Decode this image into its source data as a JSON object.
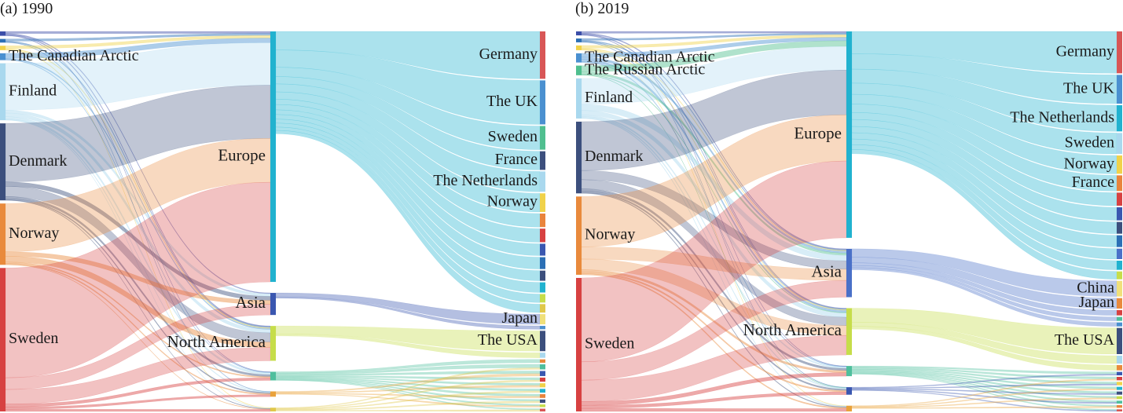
{
  "panels": [
    {
      "id": "1990",
      "title": "(a) 1990",
      "sources": [
        {
          "id": "s1",
          "label": "",
          "color": "#3b4ea8"
        },
        {
          "id": "s2",
          "label": "",
          "color": "#2b6fb5"
        },
        {
          "id": "s3",
          "label": "",
          "color": "#f0d24a"
        },
        {
          "id": "s4",
          "label": "The Canadian Arctic",
          "color": "#4a90d0"
        },
        {
          "id": "s5",
          "label": "Finland",
          "color": "#a9d8ee"
        },
        {
          "id": "s6",
          "label": "Denmark",
          "color": "#3c4f7d"
        },
        {
          "id": "s7",
          "label": "Norway",
          "color": "#e98a3c"
        },
        {
          "id": "s8",
          "label": "Sweden",
          "color": "#d74141"
        }
      ],
      "regions": [
        {
          "id": "europe",
          "label": "Europe",
          "color": "#21b2cf"
        },
        {
          "id": "asia",
          "label": "Asia",
          "color": "#3a57b0"
        },
        {
          "id": "namerica",
          "label": "North America",
          "color": "#c6dd4a"
        },
        {
          "id": "r4",
          "label": "",
          "color": "#4fbf9d"
        },
        {
          "id": "r5",
          "label": "",
          "color": "#e9a23b"
        },
        {
          "id": "r6",
          "label": "",
          "color": "#e0c84a"
        }
      ],
      "destinations": [
        {
          "label": "Germany",
          "color": "#d85656"
        },
        {
          "label": "The UK",
          "color": "#4a90d0"
        },
        {
          "label": "Sweden",
          "color": "#4fbf8f"
        },
        {
          "label": "France",
          "color": "#3c4f7d"
        },
        {
          "label": "The Netherlands",
          "color": "#a9d8ee"
        },
        {
          "label": "Norway",
          "color": "#f0d24a"
        },
        {
          "label": "",
          "color": "#e9843c"
        },
        {
          "label": "",
          "color": "#d74141"
        },
        {
          "label": "",
          "color": "#3a57b0"
        },
        {
          "label": "",
          "color": "#2b6fb5"
        },
        {
          "label": "",
          "color": "#3c4f7d"
        },
        {
          "label": "",
          "color": "#21b2cf"
        },
        {
          "label": "",
          "color": "#c6dd4a"
        },
        {
          "label": "",
          "color": "#e0c84a"
        },
        {
          "label": "Japan",
          "color": "#f0e07a"
        },
        {
          "label": "",
          "color": "#4a90d0"
        },
        {
          "label": "The USA",
          "color": "#3c4f7d"
        },
        {
          "label": "",
          "color": "#a9d8ee"
        },
        {
          "label": "",
          "color": "#e98a3c"
        },
        {
          "label": "",
          "color": "#4fbf9d"
        },
        {
          "label": "",
          "color": "#3a57b0"
        },
        {
          "label": "",
          "color": "#d74141"
        },
        {
          "label": "",
          "color": "#f0d24a"
        },
        {
          "label": "",
          "color": "#21b2cf"
        },
        {
          "label": "",
          "color": "#e9843c"
        },
        {
          "label": "",
          "color": "#3c4f7d"
        },
        {
          "label": "",
          "color": "#c6dd4a"
        },
        {
          "label": "",
          "color": "#d85656"
        }
      ],
      "links_left": [
        [
          "s1",
          "europe",
          1.5
        ],
        [
          "s1",
          "asia",
          0.6
        ],
        [
          "s1",
          "namerica",
          0.6
        ],
        [
          "s1",
          "r4",
          0.3
        ],
        [
          "s2",
          "europe",
          1.5
        ],
        [
          "s2",
          "namerica",
          0.7
        ],
        [
          "s2",
          "r5",
          0.3
        ],
        [
          "s3",
          "europe",
          2.0
        ],
        [
          "s3",
          "namerica",
          0.6
        ],
        [
          "s3",
          "r6",
          0.4
        ],
        [
          "s4",
          "europe",
          3.5
        ],
        [
          "s4",
          "namerica",
          0.8
        ],
        [
          "s4",
          "r4",
          0.4
        ],
        [
          "s5",
          "europe",
          32
        ],
        [
          "s5",
          "asia",
          2
        ],
        [
          "s5",
          "namerica",
          2.5
        ],
        [
          "s5",
          "r4",
          1.5
        ],
        [
          "s5",
          "r5",
          0.6
        ],
        [
          "s5",
          "r6",
          0.3
        ],
        [
          "s6",
          "europe",
          40
        ],
        [
          "s6",
          "asia",
          3
        ],
        [
          "s6",
          "namerica",
          7
        ],
        [
          "s6",
          "r4",
          1.5
        ],
        [
          "s6",
          "r5",
          0.8
        ],
        [
          "s6",
          "r6",
          0.3
        ],
        [
          "s7",
          "europe",
          33
        ],
        [
          "s7",
          "asia",
          3
        ],
        [
          "s7",
          "namerica",
          4
        ],
        [
          "s7",
          "r4",
          0.8
        ],
        [
          "s7",
          "r5",
          0.8
        ],
        [
          "s7",
          "r6",
          0.3
        ],
        [
          "s8",
          "europe",
          75
        ],
        [
          "s8",
          "asia",
          8
        ],
        [
          "s8",
          "namerica",
          10
        ],
        [
          "s8",
          "r4",
          2
        ],
        [
          "s8",
          "r5",
          1.5
        ],
        [
          "s8",
          "r6",
          1.5
        ]
      ],
      "right_flows": {
        "europe": [
          [
            0,
            14
          ],
          [
            1,
            13
          ],
          [
            2,
            7
          ],
          [
            3,
            5.5
          ],
          [
            4,
            6
          ],
          [
            5,
            5.5
          ],
          [
            6,
            4
          ],
          [
            7,
            4
          ],
          [
            8,
            3.5
          ],
          [
            9,
            3.5
          ],
          [
            10,
            3
          ],
          [
            11,
            3
          ],
          [
            12,
            2.5
          ],
          [
            13,
            2.5
          ]
        ],
        "asia": [
          [
            14,
            3
          ],
          [
            15,
            1
          ]
        ],
        "namerica": [
          [
            16,
            6
          ],
          [
            17,
            1.5
          ]
        ],
        "r4": [
          [
            18,
            1
          ],
          [
            19,
            1
          ],
          [
            20,
            0.8
          ],
          [
            21,
            0.7
          ],
          [
            22,
            0.6
          ],
          [
            23,
            0.6
          ],
          [
            24,
            0.6
          ],
          [
            25,
            0.5
          ],
          [
            26,
            0.4
          ],
          [
            27,
            0.3
          ]
        ],
        "r5": [
          [
            20,
            0.7
          ],
          [
            22,
            0.6
          ],
          [
            24,
            0.5
          ],
          [
            26,
            0.4
          ]
        ],
        "r6": [
          [
            19,
            0.5
          ],
          [
            21,
            0.5
          ],
          [
            23,
            0.5
          ],
          [
            25,
            0.5
          ],
          [
            27,
            0.5
          ]
        ]
      }
    },
    {
      "id": "2019",
      "title": "(b) 2019",
      "sources": [
        {
          "id": "s1",
          "label": "",
          "color": "#3b4ea8"
        },
        {
          "id": "s2",
          "label": "",
          "color": "#2b6fb5"
        },
        {
          "id": "s3",
          "label": "",
          "color": "#f0d24a"
        },
        {
          "id": "s4",
          "label": "The Canadian Arctic",
          "color": "#4a90d0"
        },
        {
          "id": "s5",
          "label": "The Russian Arctic",
          "color": "#4fbf8f"
        },
        {
          "id": "s6",
          "label": "Finland",
          "color": "#a9d8ee"
        },
        {
          "id": "s7",
          "label": "Denmark",
          "color": "#3c4f7d"
        },
        {
          "id": "s8",
          "label": "Norway",
          "color": "#e98a3c"
        },
        {
          "id": "s9",
          "label": "Sweden",
          "color": "#d74141"
        }
      ],
      "regions": [
        {
          "id": "europe",
          "label": "Europe",
          "color": "#21b2cf"
        },
        {
          "id": "asia",
          "label": "Asia",
          "color": "#4a70c8"
        },
        {
          "id": "namerica",
          "label": "North America",
          "color": "#c6dd4a"
        },
        {
          "id": "r4",
          "label": "",
          "color": "#4fbf9d"
        },
        {
          "id": "r5",
          "label": "",
          "color": "#3a57b0"
        },
        {
          "id": "r6",
          "label": "",
          "color": "#e9a23b"
        }
      ],
      "destinations": [
        {
          "label": "Germany",
          "color": "#d85656"
        },
        {
          "label": "The UK",
          "color": "#4a90d0"
        },
        {
          "label": "The Netherlands",
          "color": "#21b2cf"
        },
        {
          "label": "Sweden",
          "color": "#a9d8ee"
        },
        {
          "label": "Norway",
          "color": "#f0d24a"
        },
        {
          "label": "France",
          "color": "#e9843c"
        },
        {
          "label": "",
          "color": "#d74141"
        },
        {
          "label": "",
          "color": "#3a57b0"
        },
        {
          "label": "",
          "color": "#3c4f7d"
        },
        {
          "label": "",
          "color": "#2b6fb5"
        },
        {
          "label": "",
          "color": "#4a70c8"
        },
        {
          "label": "",
          "color": "#21b2cf"
        },
        {
          "label": "",
          "color": "#c6dd4a"
        },
        {
          "label": "China",
          "color": "#f0e07a"
        },
        {
          "label": "Japan",
          "color": "#e98a3c"
        },
        {
          "label": "",
          "color": "#d74141"
        },
        {
          "label": "",
          "color": "#4fbf9d"
        },
        {
          "label": "",
          "color": "#4a90d0"
        },
        {
          "label": "The USA",
          "color": "#3c4f7d"
        },
        {
          "label": "",
          "color": "#a9d8ee"
        },
        {
          "label": "",
          "color": "#e98a3c"
        },
        {
          "label": "",
          "color": "#3a57b0"
        },
        {
          "label": "",
          "color": "#d74141"
        },
        {
          "label": "",
          "color": "#f0d24a"
        },
        {
          "label": "",
          "color": "#21b2cf"
        },
        {
          "label": "",
          "color": "#3c4f7d"
        },
        {
          "label": "",
          "color": "#c6dd4a"
        },
        {
          "label": "",
          "color": "#4fbf9d"
        },
        {
          "label": "",
          "color": "#e9843c"
        },
        {
          "label": "",
          "color": "#d85656"
        }
      ],
      "links_left": [
        [
          "s1",
          "europe",
          1.2
        ],
        [
          "s1",
          "asia",
          0.6
        ],
        [
          "s1",
          "namerica",
          0.5
        ],
        [
          "s1",
          "r4",
          0.3
        ],
        [
          "s2",
          "europe",
          1.2
        ],
        [
          "s2",
          "asia",
          0.5
        ],
        [
          "s2",
          "namerica",
          0.5
        ],
        [
          "s2",
          "r5",
          0.3
        ],
        [
          "s3",
          "europe",
          1.8
        ],
        [
          "s3",
          "asia",
          0.5
        ],
        [
          "s3",
          "namerica",
          0.5
        ],
        [
          "s3",
          "r6",
          0.3
        ],
        [
          "s4",
          "europe",
          2.5
        ],
        [
          "s4",
          "asia",
          1.5
        ],
        [
          "s4",
          "namerica",
          1.5
        ],
        [
          "s4",
          "r4",
          0.5
        ],
        [
          "s5",
          "europe",
          4
        ],
        [
          "s5",
          "asia",
          1.5
        ],
        [
          "s5",
          "namerica",
          0.5
        ],
        [
          "s5",
          "r5",
          0.3
        ],
        [
          "s6",
          "europe",
          17
        ],
        [
          "s6",
          "asia",
          4
        ],
        [
          "s6",
          "namerica",
          3
        ],
        [
          "s6",
          "r4",
          1
        ],
        [
          "s6",
          "r5",
          0.8
        ],
        [
          "s6",
          "r6",
          0.5
        ],
        [
          "s7",
          "europe",
          32
        ],
        [
          "s7",
          "asia",
          6
        ],
        [
          "s7",
          "namerica",
          6
        ],
        [
          "s7",
          "r4",
          1.5
        ],
        [
          "s7",
          "r5",
          1
        ],
        [
          "s7",
          "r6",
          0.5
        ],
        [
          "s8",
          "europe",
          33
        ],
        [
          "s8",
          "asia",
          8
        ],
        [
          "s8",
          "namerica",
          7
        ],
        [
          "s8",
          "r4",
          1.5
        ],
        [
          "s8",
          "r5",
          1
        ],
        [
          "s8",
          "r6",
          0.8
        ],
        [
          "s9",
          "europe",
          55
        ],
        [
          "s9",
          "asia",
          12
        ],
        [
          "s9",
          "namerica",
          14
        ],
        [
          "s9",
          "r4",
          2.5
        ],
        [
          "s9",
          "r5",
          2
        ],
        [
          "s9",
          "r6",
          2
        ]
      ],
      "right_flows": {
        "europe": [
          [
            0,
            16
          ],
          [
            1,
            11
          ],
          [
            2,
            10
          ],
          [
            3,
            8
          ],
          [
            4,
            7
          ],
          [
            5,
            6
          ],
          [
            6,
            5
          ],
          [
            7,
            5
          ],
          [
            8,
            4.5
          ],
          [
            9,
            4.5
          ],
          [
            10,
            4
          ],
          [
            11,
            3.5
          ],
          [
            12,
            3
          ]
        ],
        "asia": [
          [
            13,
            6
          ],
          [
            14,
            4
          ],
          [
            15,
            2
          ],
          [
            16,
            1.5
          ],
          [
            17,
            1.5
          ]
        ],
        "namerica": [
          [
            18,
            10
          ],
          [
            19,
            3
          ],
          [
            20,
            2
          ]
        ],
        "r4": [
          [
            21,
            0.8
          ],
          [
            22,
            0.8
          ],
          [
            23,
            0.8
          ],
          [
            24,
            0.7
          ],
          [
            25,
            0.7
          ],
          [
            26,
            0.6
          ],
          [
            27,
            0.6
          ],
          [
            28,
            0.5
          ],
          [
            29,
            0.4
          ]
        ],
        "r5": [
          [
            21,
            0.5
          ],
          [
            23,
            0.5
          ],
          [
            25,
            0.5
          ],
          [
            27,
            0.5
          ],
          [
            29,
            0.4
          ]
        ],
        "r6": [
          [
            22,
            0.5
          ],
          [
            24,
            0.5
          ],
          [
            26,
            0.5
          ],
          [
            28,
            0.5
          ]
        ]
      }
    }
  ]
}
